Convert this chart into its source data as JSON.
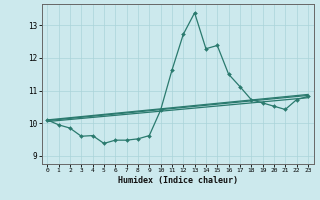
{
  "xlabel": "Humidex (Indice chaleur)",
  "background_color": "#cce9ed",
  "grid_color": "#aad4d9",
  "line_color": "#2a7a6e",
  "xlim": [
    -0.5,
    23.5
  ],
  "ylim": [
    8.75,
    13.65
  ],
  "yticks": [
    9,
    10,
    11,
    12,
    13
  ],
  "xticks": [
    0,
    1,
    2,
    3,
    4,
    5,
    6,
    7,
    8,
    9,
    10,
    11,
    12,
    13,
    14,
    15,
    16,
    17,
    18,
    19,
    20,
    21,
    22,
    23
  ],
  "line1_x": [
    0,
    1,
    2,
    3,
    4,
    5,
    6,
    7,
    8,
    9,
    10,
    11,
    12,
    13,
    14,
    15,
    16,
    17,
    18,
    19,
    20,
    21,
    22,
    23
  ],
  "line1_y": [
    10.1,
    9.95,
    9.85,
    9.6,
    9.62,
    9.38,
    9.48,
    9.48,
    9.52,
    9.62,
    10.4,
    11.62,
    12.72,
    13.38,
    12.28,
    12.38,
    11.5,
    11.12,
    10.72,
    10.62,
    10.52,
    10.42,
    10.72,
    10.82
  ],
  "line2_x": [
    0,
    23
  ],
  "line2_y": [
    10.05,
    10.78
  ],
  "line3_x": [
    0,
    23
  ],
  "line3_y": [
    10.08,
    10.85
  ],
  "line4_x": [
    0,
    23
  ],
  "line4_y": [
    10.1,
    10.88
  ]
}
